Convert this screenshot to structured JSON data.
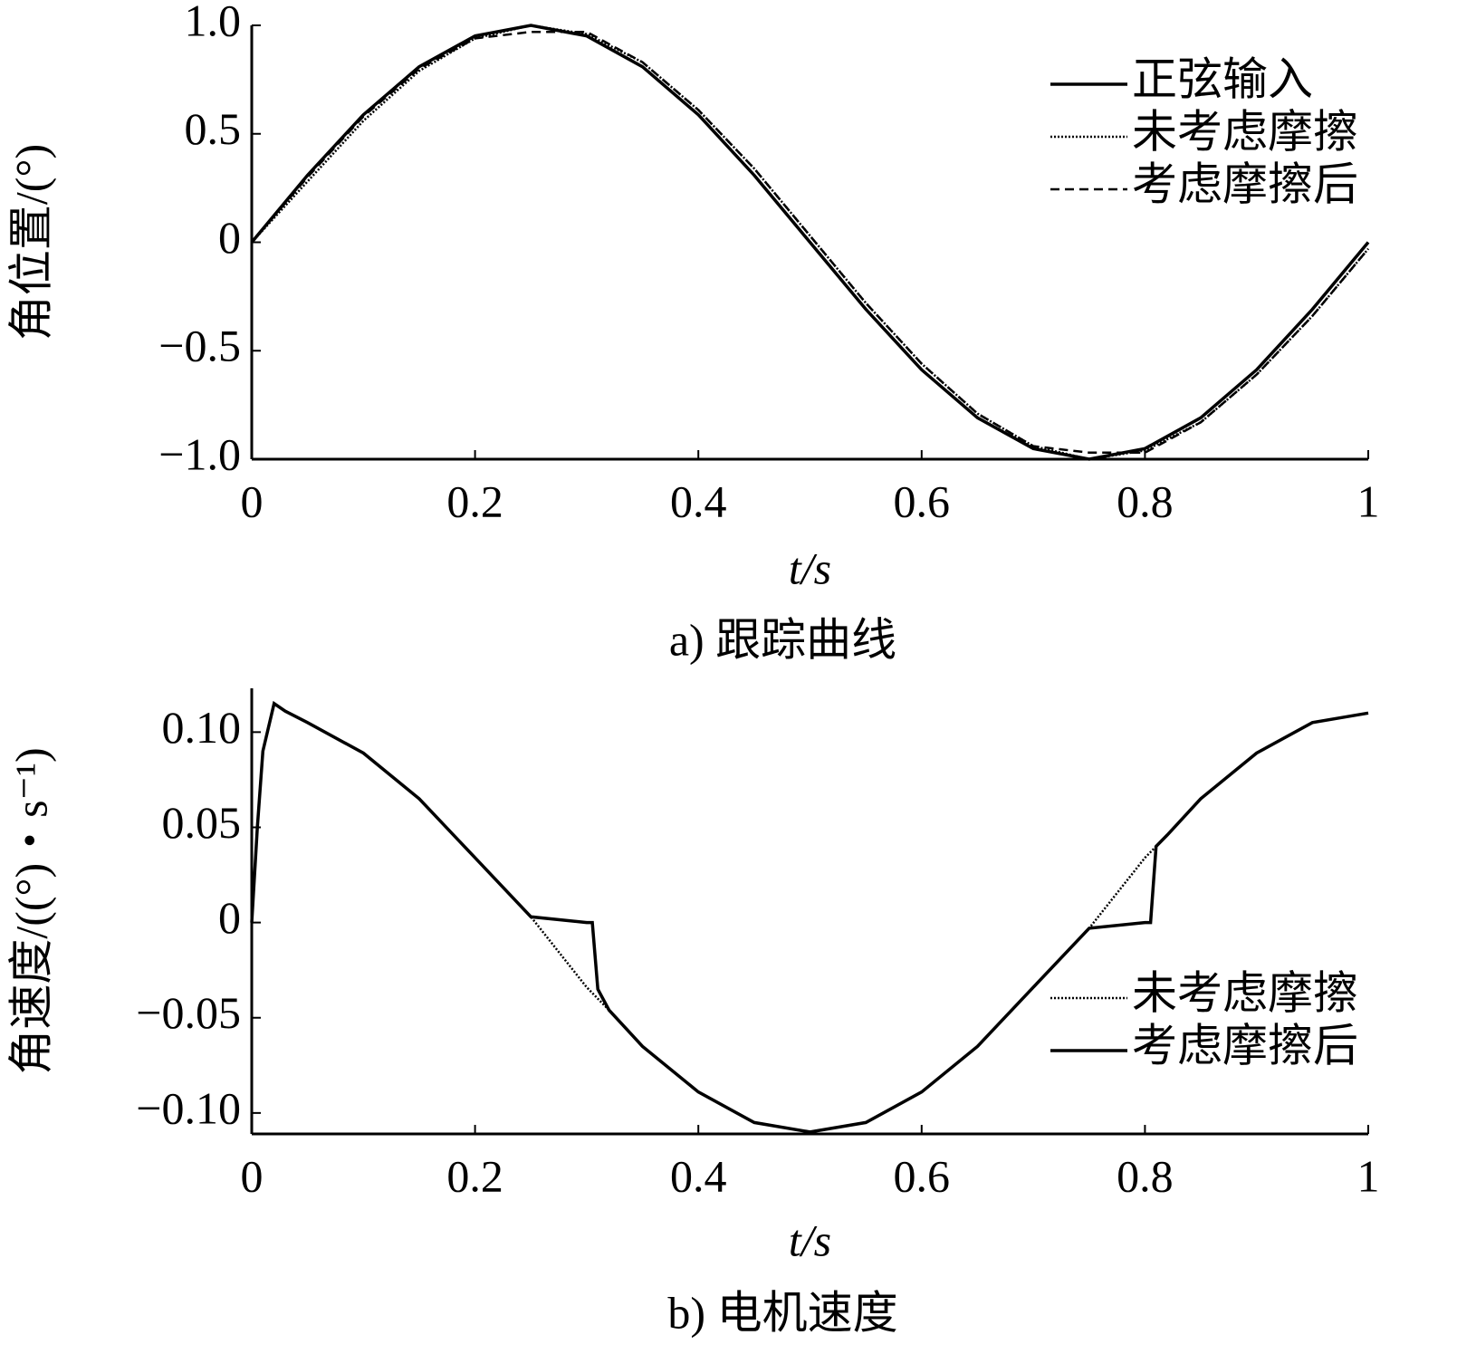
{
  "chart_data": [
    {
      "type": "line",
      "caption": "a) 跟踪曲线",
      "xlabel": "t/s",
      "ylabel": "角位置/(°)",
      "x": [
        0,
        0.05,
        0.1,
        0.15,
        0.2,
        0.25,
        0.3,
        0.35,
        0.4,
        0.45,
        0.5,
        0.55,
        0.6,
        0.65,
        0.7,
        0.75,
        0.8,
        0.85,
        0.9,
        0.95,
        1
      ],
      "series": [
        {
          "name": "正弦输入",
          "color": "#000000",
          "style": "solid",
          "values": [
            0,
            0.309,
            0.588,
            0.809,
            0.951,
            1,
            0.951,
            0.809,
            0.588,
            0.309,
            0,
            -0.309,
            -0.588,
            -0.809,
            -0.951,
            -1,
            -0.951,
            -0.809,
            -0.588,
            -0.309,
            0
          ]
        },
        {
          "name": "未考虑摩擦",
          "color": "#000000",
          "style": "dotted",
          "values": [
            0,
            0.28,
            0.56,
            0.79,
            0.94,
            1.0,
            0.96,
            0.83,
            0.61,
            0.34,
            0.03,
            -0.28,
            -0.56,
            -0.79,
            -0.94,
            -1.0,
            -0.96,
            -0.83,
            -0.61,
            -0.34,
            -0.03
          ]
        },
        {
          "name": "考虑摩擦后",
          "color": "#000000",
          "style": "dashed",
          "values": [
            0,
            0.3,
            0.58,
            0.8,
            0.94,
            0.97,
            0.97,
            0.83,
            0.61,
            0.34,
            0.03,
            -0.28,
            -0.56,
            -0.79,
            -0.94,
            -0.97,
            -0.97,
            -0.83,
            -0.61,
            -0.34,
            -0.03
          ]
        }
      ],
      "xlim": [
        0,
        1
      ],
      "ylim": [
        -1,
        1
      ],
      "xticks": [
        0,
        0.2,
        0.4,
        0.6,
        0.8,
        1
      ],
      "yticks": [
        {
          "value": -1,
          "label": "−1.0"
        },
        {
          "value": -0.5,
          "label": "−0.5"
        },
        0,
        0.5,
        {
          "value": 1,
          "label": "1.0"
        }
      ],
      "legend": "upper right"
    },
    {
      "type": "line",
      "caption": "b) 电机速度",
      "xlabel": "t/s",
      "ylabel": "角速度/((°)・s⁻¹)",
      "x": [
        0,
        0.005,
        0.01,
        0.02,
        0.03,
        0.05,
        0.1,
        0.15,
        0.2,
        0.25,
        0.3,
        0.305,
        0.31,
        0.32,
        0.35,
        0.4,
        0.45,
        0.5,
        0.55,
        0.6,
        0.65,
        0.7,
        0.75,
        0.8,
        0.805,
        0.81,
        0.82,
        0.85,
        0.9,
        0.95,
        1
      ],
      "series": [
        {
          "name": "未考虑摩擦",
          "color": "#000000",
          "style": "dotted",
          "values": [
            0,
            0.05,
            0.09,
            0.115,
            0.111,
            0.105,
            0.089,
            0.065,
            0.034,
            0.003,
            -0.034,
            -0.037,
            -0.04,
            -0.046,
            -0.065,
            -0.089,
            -0.105,
            -0.11,
            -0.105,
            -0.089,
            -0.065,
            -0.034,
            -0.003,
            0.034,
            0.037,
            0.04,
            0.046,
            0.065,
            0.089,
            0.105,
            0.11
          ]
        },
        {
          "name": "考虑摩擦后",
          "color": "#000000",
          "style": "solid",
          "values": [
            0,
            0.05,
            0.09,
            0.115,
            0.111,
            0.105,
            0.089,
            0.065,
            0.034,
            0.003,
            0,
            0,
            -0.035,
            -0.046,
            -0.065,
            -0.089,
            -0.105,
            -0.11,
            -0.105,
            -0.089,
            -0.065,
            -0.034,
            -0.003,
            0,
            0,
            0.04,
            0.046,
            0.065,
            0.089,
            0.105,
            0.11
          ]
        }
      ],
      "xlim": [
        0,
        1
      ],
      "ylim": [
        -0.111,
        0.123
      ],
      "xticks": [
        0,
        0.2,
        0.4,
        0.6,
        0.8,
        1
      ],
      "yticks": [
        {
          "value": -0.1,
          "label": "−0.10"
        },
        {
          "value": -0.05,
          "label": "−0.05"
        },
        0,
        0.05,
        {
          "value": 0.1,
          "label": "0.10"
        }
      ],
      "legend": "lower right"
    }
  ]
}
